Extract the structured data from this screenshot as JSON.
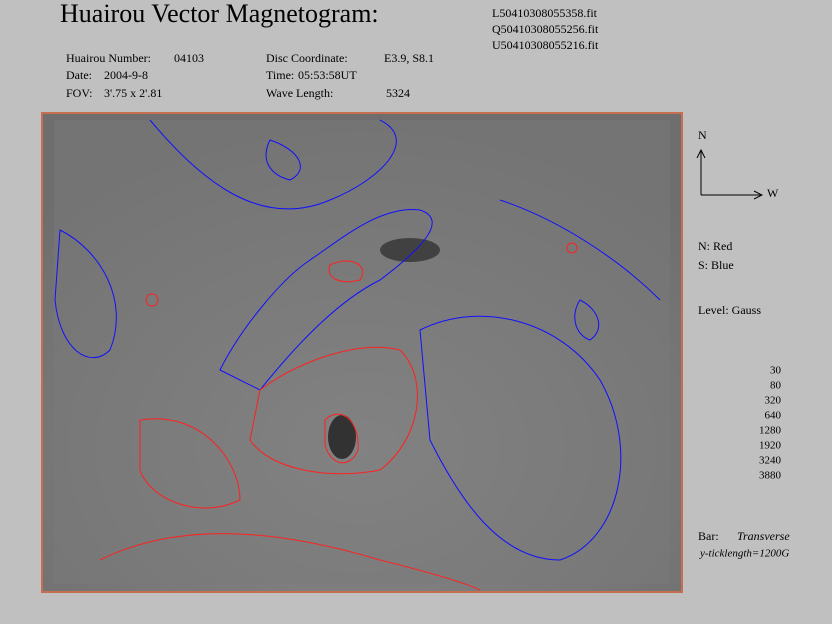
{
  "header": {
    "title": "Huairou Vector Magnetogram:",
    "files": [
      "L50410308055358.fit",
      "Q50410308055256.fit",
      "U50410308055216.fit"
    ]
  },
  "info": [
    {
      "label": "Huairou Number:",
      "value": "04103"
    },
    {
      "label": "Date:",
      "value": "2004-9-8"
    },
    {
      "label": "FOV:",
      "value": "3'.75 x 2'.81"
    },
    {
      "label": "Disc Coordinate:",
      "value": "E3.9, S8.1"
    },
    {
      "label": "Time:",
      "value": "05:53:58UT"
    },
    {
      "label": "Wave Length:",
      "value": "5324"
    }
  ],
  "compass": {
    "north": "N",
    "west": "W"
  },
  "legend": {
    "north_polarity": "N: Red",
    "south_polarity": "S: Blue",
    "level_title": "Level: Gauss",
    "levels": [
      30,
      80,
      320,
      640,
      1280,
      1920,
      3240,
      3880
    ],
    "bar_label": "Bar:",
    "bar_type": "Transverse",
    "bar_note": "y-ticklength=1200G"
  }
}
